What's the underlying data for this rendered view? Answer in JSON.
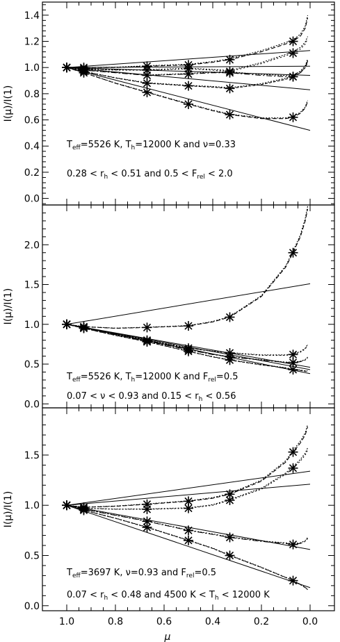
{
  "chart_data": [
    {
      "type": "line",
      "ylabel": "I(μ)/I(1)",
      "xlabel": "",
      "xlim": [
        1.1,
        -0.1
      ],
      "ylim": [
        -0.05,
        1.5
      ],
      "yticks": [
        "0.0",
        "0.2",
        "0.4",
        "0.6",
        "0.8",
        "1.0",
        "1.2",
        "1.4"
      ],
      "ytick_values": [
        0.0,
        0.2,
        0.4,
        0.6,
        0.8,
        1.0,
        1.2,
        1.4
      ],
      "annotation_line1": [
        "T",
        "eff",
        "=5526 K, T",
        "h",
        "=12000 K and ν=0.33"
      ],
      "annotation_line2": [
        "0.28 < r",
        "h",
        " < 0.51 and 0.5 < F",
        "rel",
        " < 2.0"
      ],
      "marker_x": [
        1.0,
        0.93,
        0.67,
        0.5,
        0.33,
        0.07
      ],
      "series": [
        {
          "marker_y": [
            1.0,
            1.0,
            1.01,
            1.02,
            1.06,
            1.2
          ],
          "fit": [
            1.0,
            1.13
          ],
          "x": [
            1.0,
            0.93,
            0.8,
            0.67,
            0.5,
            0.4,
            0.33,
            0.2,
            0.1,
            0.07,
            0.04,
            0.02,
            0.01
          ],
          "values": [
            1.0,
            1.0,
            1.0,
            1.01,
            1.02,
            1.04,
            1.06,
            1.12,
            1.18,
            1.2,
            1.24,
            1.3,
            1.38
          ]
        },
        {
          "marker_y": [
            1.0,
            0.99,
            0.98,
            0.99,
            0.97,
            1.11
          ],
          "fit": [
            1.0,
            1.01
          ],
          "x": [
            1.0,
            0.93,
            0.8,
            0.67,
            0.5,
            0.4,
            0.33,
            0.2,
            0.1,
            0.07,
            0.04,
            0.02,
            0.01
          ],
          "values": [
            1.0,
            0.99,
            0.98,
            0.98,
            0.99,
            0.98,
            0.97,
            1.03,
            1.09,
            1.11,
            1.14,
            1.18,
            1.22
          ]
        },
        {
          "marker_y": [
            1.0,
            0.98,
            0.94,
            0.95,
            0.96,
            0.93
          ],
          "fit": [
            1.0,
            0.94
          ],
          "x": [
            1.0,
            0.93,
            0.8,
            0.67,
            0.5,
            0.4,
            0.33,
            0.2,
            0.1,
            0.07,
            0.04,
            0.02,
            0.01
          ],
          "values": [
            1.0,
            0.98,
            0.96,
            0.94,
            0.95,
            0.96,
            0.96,
            0.94,
            0.93,
            0.93,
            0.96,
            1.0,
            1.05
          ]
        },
        {
          "marker_y": [
            1.0,
            0.97,
            0.88,
            0.86,
            0.84,
            0.93
          ],
          "fit": [
            1.0,
            0.83
          ],
          "x": [
            1.0,
            0.93,
            0.8,
            0.67,
            0.5,
            0.4,
            0.33,
            0.2,
            0.1,
            0.07,
            0.04,
            0.02,
            0.01
          ],
          "values": [
            1.0,
            0.97,
            0.92,
            0.88,
            0.86,
            0.85,
            0.84,
            0.87,
            0.91,
            0.93,
            0.96,
            1.0,
            1.04
          ]
        },
        {
          "marker_y": [
            1.0,
            0.96,
            0.81,
            0.72,
            0.64,
            0.62
          ],
          "fit": [
            1.0,
            0.52
          ],
          "x": [
            1.0,
            0.93,
            0.8,
            0.67,
            0.5,
            0.4,
            0.33,
            0.2,
            0.1,
            0.07,
            0.04,
            0.02,
            0.01
          ],
          "values": [
            1.0,
            0.96,
            0.88,
            0.81,
            0.72,
            0.67,
            0.64,
            0.61,
            0.61,
            0.62,
            0.65,
            0.69,
            0.74
          ]
        }
      ]
    },
    {
      "type": "line",
      "ylabel": "I(μ)/I(1)",
      "xlabel": "",
      "xlim": [
        1.1,
        -0.1
      ],
      "ylim": [
        -0.05,
        2.5
      ],
      "yticks": [
        "0.0",
        "0.5",
        "1.0",
        "1.5",
        "2.0"
      ],
      "ytick_values": [
        0.0,
        0.5,
        1.0,
        1.5,
        2.0
      ],
      "annotation_line1": [
        "T",
        "eff",
        "=5526 K, T",
        "h",
        "=12000 K and F",
        "rel",
        "=0.5"
      ],
      "annotation_line2": [
        "0.07 < ν < 0.93 and 0.15 < r",
        "h",
        " < 0.56"
      ],
      "marker_x": [
        1.0,
        0.93,
        0.67,
        0.5,
        0.33,
        0.07
      ],
      "series": [
        {
          "marker_y": [
            1.0,
            0.97,
            0.96,
            0.98,
            1.09,
            1.9
          ],
          "fit": [
            1.0,
            1.51
          ],
          "x": [
            1.0,
            0.93,
            0.8,
            0.67,
            0.5,
            0.4,
            0.33,
            0.2,
            0.1,
            0.07,
            0.04,
            0.02,
            0.01
          ],
          "values": [
            1.0,
            0.97,
            0.95,
            0.96,
            0.98,
            1.03,
            1.09,
            1.35,
            1.72,
            1.9,
            2.1,
            2.3,
            2.45
          ]
        },
        {
          "marker_y": [
            1.0,
            0.96,
            0.8,
            0.7,
            0.64,
            0.62
          ],
          "fit": [
            1.0,
            0.46
          ],
          "x": [
            1.0,
            0.93,
            0.8,
            0.67,
            0.5,
            0.4,
            0.33,
            0.2,
            0.1,
            0.07,
            0.04,
            0.02,
            0.01
          ],
          "values": [
            1.0,
            0.96,
            0.88,
            0.8,
            0.7,
            0.66,
            0.64,
            0.61,
            0.61,
            0.62,
            0.65,
            0.69,
            0.74
          ]
        },
        {
          "marker_y": [
            1.0,
            0.96,
            0.79,
            0.68,
            0.59,
            0.52
          ],
          "fit": [
            1.0,
            0.43
          ],
          "x": [
            1.0,
            0.93,
            0.8,
            0.67,
            0.5,
            0.4,
            0.33,
            0.2,
            0.1,
            0.07,
            0.04,
            0.02,
            0.01
          ],
          "values": [
            1.0,
            0.96,
            0.87,
            0.79,
            0.68,
            0.62,
            0.59,
            0.55,
            0.52,
            0.52,
            0.53,
            0.55,
            0.58
          ]
        },
        {
          "marker_y": [
            1.0,
            0.95,
            0.78,
            0.66,
            0.55,
            0.43
          ],
          "fit": [
            1.0,
            0.38
          ],
          "x": [
            1.0,
            0.93,
            0.8,
            0.67,
            0.5,
            0.4,
            0.33,
            0.2,
            0.1,
            0.07,
            0.04,
            0.02,
            0.01
          ],
          "values": [
            1.0,
            0.95,
            0.86,
            0.78,
            0.66,
            0.59,
            0.55,
            0.49,
            0.45,
            0.43,
            0.42,
            0.41,
            0.41
          ]
        }
      ]
    },
    {
      "type": "line",
      "ylabel": "I(μ)/I(1)",
      "xlabel": "μ",
      "xlim": [
        1.1,
        -0.1
      ],
      "ylim": [
        -0.05,
        1.97
      ],
      "xticks": [
        "1.0",
        "0.8",
        "0.6",
        "0.4",
        "0.2",
        "0.0"
      ],
      "xtick_values": [
        1.0,
        0.8,
        0.6,
        0.4,
        0.2,
        0.0
      ],
      "yticks": [
        "0.0",
        "0.5",
        "1.0",
        "1.5"
      ],
      "ytick_values": [
        0.0,
        0.5,
        1.0,
        1.5
      ],
      "annotation_line1": [
        "T",
        "eff",
        "=3697 K, ν=0.93 and F",
        "rel",
        "=0.5"
      ],
      "annotation_line2": [
        "0.07 < r",
        "h",
        " < 0.48 and 4500 K < T",
        "h",
        " < 12000 K"
      ],
      "marker_x": [
        1.0,
        0.93,
        0.67,
        0.5,
        0.33,
        0.07
      ],
      "series": [
        {
          "marker_y": [
            1.0,
            0.98,
            1.01,
            1.04,
            1.11,
            1.53
          ],
          "fit": [
            1.0,
            1.34
          ],
          "x": [
            1.0,
            0.93,
            0.8,
            0.67,
            0.5,
            0.4,
            0.33,
            0.2,
            0.1,
            0.07,
            0.04,
            0.02,
            0.01
          ],
          "values": [
            1.0,
            0.98,
            0.99,
            1.01,
            1.04,
            1.07,
            1.11,
            1.24,
            1.43,
            1.53,
            1.62,
            1.7,
            1.78
          ]
        },
        {
          "marker_y": [
            1.0,
            0.97,
            0.96,
            0.97,
            1.05,
            1.37
          ],
          "fit": [
            1.0,
            1.21
          ],
          "x": [
            1.0,
            0.93,
            0.8,
            0.67,
            0.5,
            0.4,
            0.33,
            0.2,
            0.1,
            0.07,
            0.04,
            0.02,
            0.01
          ],
          "values": [
            1.0,
            0.97,
            0.96,
            0.96,
            0.97,
            1.0,
            1.05,
            1.16,
            1.31,
            1.37,
            1.44,
            1.5,
            1.55
          ]
        },
        {
          "marker_y": [
            1.0,
            0.96,
            0.84,
            0.75,
            0.68,
            0.61
          ],
          "fit": [
            1.0,
            0.56
          ],
          "x": [
            1.0,
            0.93,
            0.8,
            0.67,
            0.5,
            0.4,
            0.33,
            0.2,
            0.1,
            0.07,
            0.04,
            0.02,
            0.01
          ],
          "values": [
            1.0,
            0.96,
            0.9,
            0.84,
            0.75,
            0.71,
            0.68,
            0.64,
            0.62,
            0.61,
            0.62,
            0.64,
            0.67
          ]
        },
        {
          "marker_y": [
            1.0,
            0.95,
            0.78,
            0.65,
            0.5,
            0.25
          ],
          "fit": [
            1.0,
            0.18
          ],
          "x": [
            1.0,
            0.93,
            0.8,
            0.67,
            0.5,
            0.4,
            0.33,
            0.2,
            0.1,
            0.07,
            0.04,
            0.02,
            0.01
          ],
          "values": [
            1.0,
            0.95,
            0.87,
            0.78,
            0.65,
            0.57,
            0.5,
            0.38,
            0.28,
            0.25,
            0.21,
            0.18,
            0.16
          ]
        }
      ]
    }
  ]
}
